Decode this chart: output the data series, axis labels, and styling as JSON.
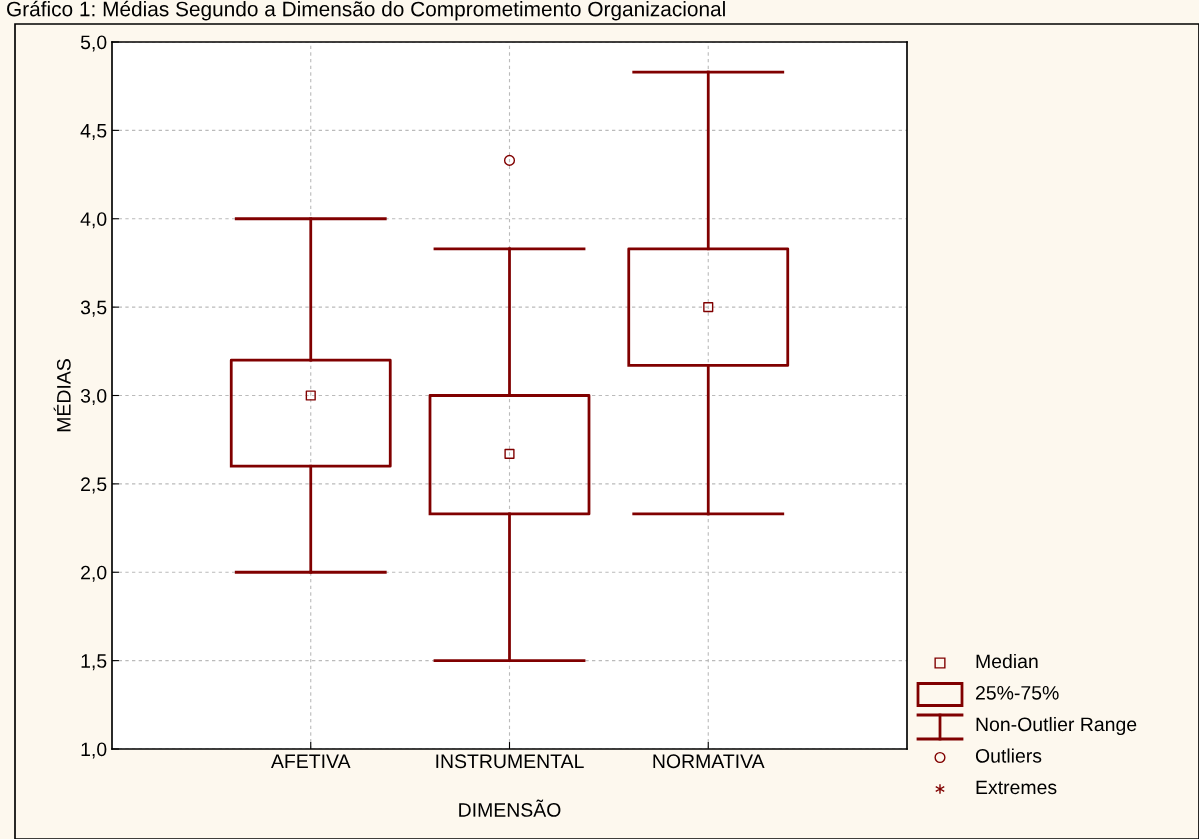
{
  "chart_data": {
    "type": "box",
    "title": "Gráfico 1: Médias Segundo a Dimensão do Comprometimento Organizacional",
    "xlabel": "DIMENSÃO",
    "ylabel": "MÉDIAS",
    "categories": [
      "AFETIVA",
      "INSTRUMENTAL",
      "NORMATIVA"
    ],
    "color": "#800000",
    "boxes": [
      {
        "low": 2.0,
        "q1": 2.6,
        "median": 3.0,
        "q3": 3.2,
        "high": 4.0
      },
      {
        "low": 1.5,
        "q1": 2.33,
        "median": 2.67,
        "q3": 3.0,
        "high": 3.83,
        "outliers": [
          4.33
        ]
      },
      {
        "low": 2.33,
        "q1": 3.17,
        "median": 3.5,
        "q3": 3.83,
        "high": 4.83
      }
    ],
    "ylim": [
      1.0,
      5.0
    ],
    "yticks": [
      {
        "value": 1.0,
        "label": "1,0"
      },
      {
        "value": 1.5,
        "label": "1,5"
      },
      {
        "value": 2.0,
        "label": "2,0"
      },
      {
        "value": 2.5,
        "label": "2,5"
      },
      {
        "value": 3.0,
        "label": "3,0"
      },
      {
        "value": 3.5,
        "label": "3,5"
      },
      {
        "value": 4.0,
        "label": "4,0"
      },
      {
        "value": 4.5,
        "label": "4,5"
      },
      {
        "value": 5.0,
        "label": "5,0"
      }
    ],
    "grid": true,
    "annotations": [
      "Median",
      "25%-75%",
      "Non-Outlier Range",
      "Outliers",
      "Extremes"
    ]
  }
}
